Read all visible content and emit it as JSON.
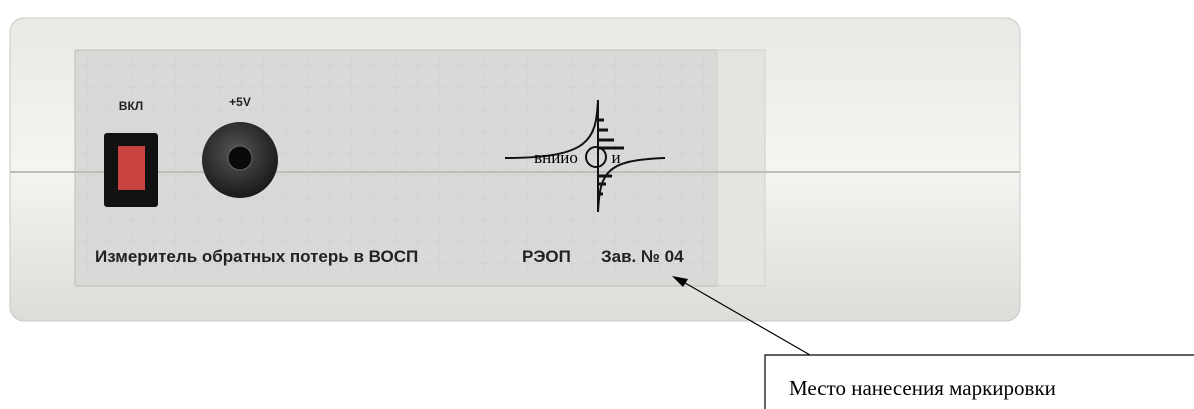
{
  "device": {
    "switch_label": "ВКЛ",
    "power_label": "+5V",
    "logo": {
      "left": "вниио",
      "right": "и"
    },
    "name": "Измеритель обратных потерь в ВОСП",
    "model": "РЭОП",
    "serial": "Зав. № 04"
  },
  "callout": {
    "text": "Место нанесения маркировки"
  }
}
